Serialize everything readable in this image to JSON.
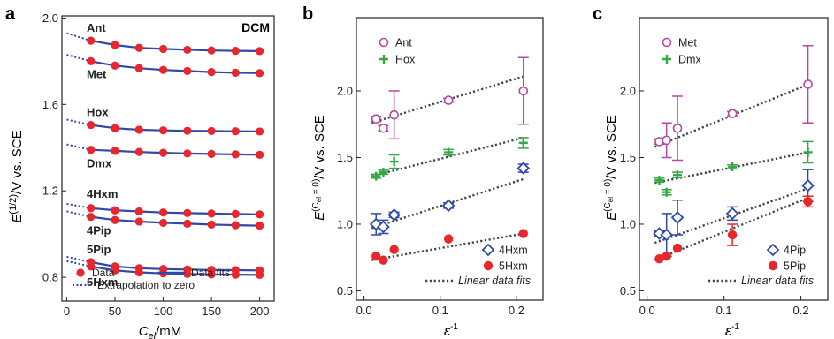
{
  "colors": {
    "data_red": "#e8262b",
    "fit_blue": "#2f49a8",
    "purple": "#b04aa0",
    "green": "#35a845",
    "axis": "#222222",
    "dots": "#444444"
  },
  "chart_data": [
    {
      "type": "line",
      "panel_label": "a",
      "corner_label": "DCM",
      "ylabel": {
        "main": "E",
        "sup": "(1/2)",
        "rest": "/V vs. SCE"
      },
      "xlabel": {
        "main": "C",
        "sub": "el",
        "rest": "/mM"
      },
      "xlim": [
        -5,
        215
      ],
      "ylim": [
        0.69,
        2.01
      ],
      "xticks": [
        0,
        50,
        100,
        150,
        200
      ],
      "yticks": [
        0.8,
        1.2,
        1.6,
        2.0
      ],
      "x": [
        25,
        50,
        75,
        100,
        125,
        150,
        175,
        200
      ],
      "series": [
        {
          "name": "Ant",
          "values": [
            1.895,
            1.875,
            1.862,
            1.857,
            1.853,
            1.85,
            1.848,
            1.847
          ],
          "extrap0": 1.93
        },
        {
          "name": "Met",
          "values": [
            1.8,
            1.78,
            1.768,
            1.76,
            1.755,
            1.75,
            1.747,
            1.745
          ],
          "extrap0": 1.83
        },
        {
          "name": "Hox",
          "values": [
            1.505,
            1.49,
            1.483,
            1.48,
            1.478,
            1.477,
            1.476,
            1.475
          ],
          "extrap0": 1.53
        },
        {
          "name": "Dmx",
          "values": [
            1.39,
            1.385,
            1.38,
            1.376,
            1.373,
            1.371,
            1.369,
            1.367
          ],
          "extrap0": 1.415
        },
        {
          "name": "4Hxm",
          "values": [
            1.12,
            1.11,
            1.105,
            1.1,
            1.097,
            1.095,
            1.093,
            1.091
          ],
          "extrap0": 1.14
        },
        {
          "name": "4Pip",
          "values": [
            1.08,
            1.065,
            1.058,
            1.052,
            1.048,
            1.044,
            1.041,
            1.039
          ],
          "extrap0": 1.105
        },
        {
          "name": "5Pip",
          "values": [
            0.87,
            0.85,
            0.842,
            0.838,
            0.836,
            0.834,
            0.833,
            0.832
          ],
          "extrap0": 0.895
        },
        {
          "name": "5Hxm",
          "values": [
            0.85,
            0.832,
            0.823,
            0.818,
            0.815,
            0.813,
            0.812,
            0.811
          ],
          "extrap0": 0.875
        }
      ],
      "legend": [
        {
          "kind": "dot",
          "text": "Data"
        },
        {
          "kind": "line",
          "text": "Data fits"
        },
        {
          "kind": "dotted",
          "text": "Extrapolation to zero"
        }
      ]
    },
    {
      "type": "scatter",
      "panel_label": "b",
      "ylabel": {
        "main": "E",
        "sup": "(C",
        "supsub": "el",
        "suprest": " = 0)",
        "rest": "/V vs. SCE"
      },
      "xlabel": {
        "main": "ε",
        "sup": "-1"
      },
      "xlim": [
        -0.01,
        0.235
      ],
      "ylim": [
        0.43,
        2.55
      ],
      "xticks": [
        0,
        0.1,
        0.2
      ],
      "xticklabels": [
        "0.0",
        "0.1",
        "0.2"
      ],
      "yticks": [
        0.5,
        1.0,
        1.5,
        2.0
      ],
      "yticklabels": [
        "0.5",
        "1.0",
        "1.5",
        "2.0"
      ],
      "series": [
        {
          "name": "Ant",
          "marker": "circle-open",
          "color": "#b04aa0",
          "x": [
            0.0158,
            0.0253,
            0.0395,
            0.1109,
            0.2092
          ],
          "y": [
            1.79,
            1.72,
            1.82,
            1.93,
            2.0
          ],
          "err": [
            0.02,
            0.02,
            0.18,
            0.015,
            0.25
          ],
          "fit": [
            1.76,
            2.11
          ]
        },
        {
          "name": "Hox",
          "marker": "plus",
          "color": "#35a845",
          "x": [
            0.0158,
            0.0253,
            0.0395,
            0.1109,
            0.2092
          ],
          "y": [
            1.36,
            1.39,
            1.47,
            1.54,
            1.61
          ],
          "err": [
            0.015,
            0.015,
            0.05,
            0.02,
            0.04
          ],
          "fit": [
            1.36,
            1.65
          ]
        },
        {
          "name": "4Hxm",
          "marker": "diamond-open",
          "color": "#2f49a8",
          "x": [
            0.0158,
            0.0253,
            0.0395,
            0.1109,
            0.2092
          ],
          "y": [
            1.0,
            0.98,
            1.07,
            1.14,
            1.42
          ],
          "err": [
            0.08,
            0.05,
            0.02,
            0.02,
            0.03
          ],
          "fit": [
            0.97,
            1.34
          ]
        },
        {
          "name": "5Hxm",
          "marker": "dot",
          "color": "#e8262b",
          "x": [
            0.0158,
            0.0253,
            0.0395,
            0.1109,
            0.2092
          ],
          "y": [
            0.76,
            0.73,
            0.81,
            0.89,
            0.93
          ],
          "err": [
            0.01,
            0.01,
            0.01,
            0.01,
            0.01
          ],
          "fit": [
            0.73,
            0.93
          ]
        }
      ],
      "legend_top": [
        "Ant",
        "Hox"
      ],
      "legend_bottom": [
        "4Hxm",
        "5Hxm"
      ],
      "fit_label": "Linear data fits"
    },
    {
      "type": "scatter",
      "panel_label": "c",
      "ylabel": {
        "main": "E",
        "sup": "(C",
        "supsub": "el",
        "suprest": " = 0)",
        "rest": "/V vs. SCE"
      },
      "xlabel": {
        "main": "ε",
        "sup": "-1"
      },
      "xlim": [
        -0.01,
        0.235
      ],
      "ylim": [
        0.43,
        2.55
      ],
      "xticks": [
        0,
        0.1,
        0.2
      ],
      "xticklabels": [
        "0.0",
        "0.1",
        "0.2"
      ],
      "yticks": [
        0.5,
        1.0,
        1.5,
        2.0
      ],
      "yticklabels": [
        "0.5",
        "1.0",
        "1.5",
        "2.0"
      ],
      "series": [
        {
          "name": "Met",
          "marker": "circle-open",
          "color": "#b04aa0",
          "x": [
            0.0158,
            0.0253,
            0.0395,
            0.1109,
            0.2092
          ],
          "y": [
            1.62,
            1.63,
            1.72,
            1.83,
            2.05
          ],
          "err": [
            0.02,
            0.13,
            0.24,
            0.015,
            0.29
          ],
          "fit": [
            1.58,
            2.05
          ]
        },
        {
          "name": "Dmx",
          "marker": "plus",
          "color": "#35a845",
          "x": [
            0.0158,
            0.0253,
            0.0395,
            0.1109,
            0.2092
          ],
          "y": [
            1.33,
            1.24,
            1.37,
            1.43,
            1.54
          ],
          "err": [
            0.015,
            0.02,
            0.02,
            0.015,
            0.08
          ],
          "fit": [
            1.31,
            1.54
          ]
        },
        {
          "name": "4Pip",
          "marker": "diamond-open",
          "color": "#2f49a8",
          "x": [
            0.0158,
            0.0253,
            0.0395,
            0.1109,
            0.2092
          ],
          "y": [
            0.93,
            0.92,
            1.05,
            1.08,
            1.29
          ],
          "err": [
            0.02,
            0.16,
            0.13,
            0.05,
            0.12
          ],
          "fit": [
            0.86,
            1.27
          ]
        },
        {
          "name": "5Pip",
          "marker": "dot",
          "color": "#e8262b",
          "x": [
            0.0158,
            0.0253,
            0.0395,
            0.1109,
            0.2092
          ],
          "y": [
            0.74,
            0.76,
            0.82,
            0.92,
            1.17
          ],
          "err": [
            0.01,
            0.01,
            0.01,
            0.08,
            0.04
          ],
          "fit": [
            0.73,
            1.2
          ]
        }
      ],
      "legend_top": [
        "Met",
        "Dmx"
      ],
      "legend_bottom": [
        "4Pip",
        "5Pip"
      ],
      "fit_label": "Linear data fits"
    }
  ]
}
